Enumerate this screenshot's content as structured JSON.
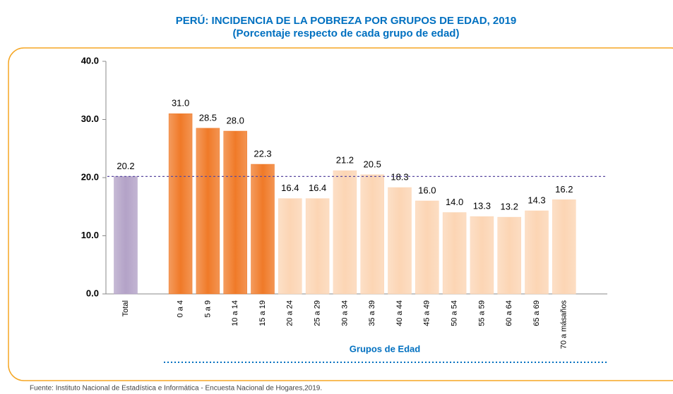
{
  "chart_data": {
    "type": "bar",
    "title": "PERÚ: INCIDENCIA DE LA POBREZA POR GRUPOS DE EDAD, 2019",
    "subtitle": "(Porcentaje respecto de cada grupo de edad)",
    "x_label": "Grupos de Edad",
    "source": "Fuente: Instituto Nacional de Estadística e Informática -  Encuesta Nacional de Hogares,2019.",
    "categories": [
      "Total",
      null,
      "0 a 4",
      "5 a 9",
      "10 a 14",
      "15 a 19",
      "20 a 24",
      "25 a 29",
      "30 a 34",
      "35 a 39",
      "40 a 44",
      "45 a 49",
      "50 a 54",
      "55 a 59",
      "60 a 64",
      "65 a 69",
      "70 a másaños"
    ],
    "values": [
      20.2,
      null,
      31.0,
      28.5,
      28.0,
      22.3,
      16.4,
      16.4,
      21.2,
      20.5,
      18.3,
      16.0,
      14.0,
      13.3,
      13.2,
      14.3,
      16.2
    ],
    "value_labels": [
      "20.2",
      null,
      "31.0",
      "28.5",
      "28.0",
      "22.3",
      "16.4",
      "16.4",
      "21.2",
      "20.5",
      "18.3",
      "16.0",
      "14.0",
      "13.3",
      "13.2",
      "14.3",
      "16.2"
    ],
    "colors": [
      "#b3a2c7",
      null,
      "#f07a28",
      "#f07a28",
      "#f07a28",
      "#f07a28",
      "#fcd5b4",
      "#fcd5b4",
      "#fcd5b4",
      "#fcd5b4",
      "#fcd5b4",
      "#fcd5b4",
      "#fcd5b4",
      "#fcd5b4",
      "#fcd5b4",
      "#fcd5b4",
      "#fcd5b4"
    ],
    "ylim": [
      0,
      40
    ],
    "yticks": [
      {
        "value": 0,
        "label": "0.0"
      },
      {
        "value": 10,
        "label": "10.0"
      },
      {
        "value": 20,
        "label": "20.0"
      },
      {
        "value": 30,
        "label": "30.0"
      },
      {
        "value": 40,
        "label": "40.0"
      }
    ],
    "grid": false
  }
}
